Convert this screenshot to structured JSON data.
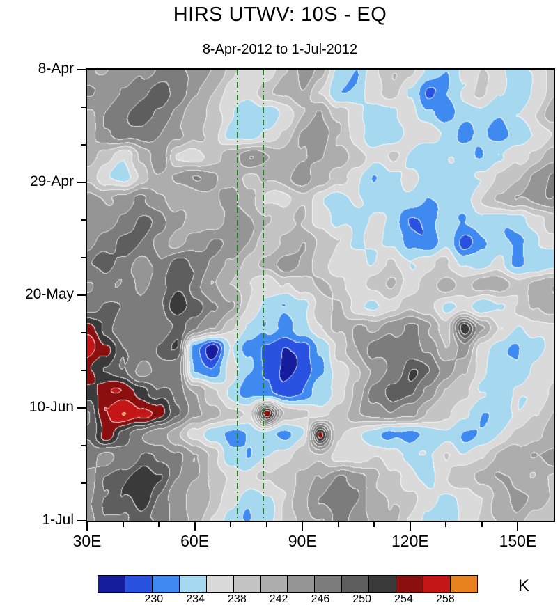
{
  "title": "HIRS UTWV: 10S - EQ",
  "subtitle": "8-Apr-2012 to 1-Jul-2012",
  "axes": {
    "y_ticks": [
      {
        "day": 0,
        "label": "8-Apr"
      },
      {
        "day": 21,
        "label": "29-Apr"
      },
      {
        "day": 42,
        "label": "20-May"
      },
      {
        "day": 63,
        "label": "10-Jun"
      },
      {
        "day": 84,
        "label": "1-Jul"
      }
    ],
    "y_minor_days": [
      7,
      14,
      28,
      35,
      49,
      56,
      70,
      77
    ],
    "x_ticks": [
      {
        "lon": 30,
        "label": "30E"
      },
      {
        "lon": 60,
        "label": "60E"
      },
      {
        "lon": 90,
        "label": "90E"
      },
      {
        "lon": 120,
        "label": "120E"
      },
      {
        "lon": 150,
        "label": "150E"
      }
    ],
    "x_minor_lons": [
      40,
      50,
      70,
      80,
      100,
      110,
      130,
      140
    ]
  },
  "colorbar": {
    "unit": "K",
    "labels": [
      "230",
      "234",
      "238",
      "242",
      "246",
      "250",
      "254",
      "258"
    ]
  },
  "chart_data": {
    "type": "heatmap",
    "title": "HIRS UTWV: 10S - EQ",
    "subtitle": "8-Apr-2012 to 1-Jul-2012",
    "units": "K",
    "x_axis": {
      "name": "longitude",
      "min": 30,
      "max": 160,
      "tick_labels": [
        "30E",
        "60E",
        "90E",
        "120E",
        "150E"
      ]
    },
    "y_axis": {
      "name": "date, top to bottom",
      "start": "8-Apr-2012",
      "end": "1-Jul-2012",
      "tick_labels": [
        "8-Apr",
        "29-Apr",
        "20-May",
        "10-Jun",
        "1-Jul"
      ]
    },
    "levels": [
      230,
      233,
      236,
      239,
      241.5,
      244,
      246.5,
      249,
      251.5,
      253.5,
      255.5,
      257.5,
      259.5
    ],
    "palette": [
      "#151d9c",
      "#2a52e0",
      "#3f8af0",
      "#a6d8ef",
      "#dadada",
      "#c4c4c4",
      "#adadad",
      "#959595",
      "#7c7c7c",
      "#5e5e5e",
      "#3a3a3a",
      "#8c0f0f",
      "#c41616",
      "#e8821e"
    ],
    "reference_lines": {
      "longitudes": [
        72,
        79
      ],
      "color": "#1e7d1e",
      "style": "dash-dot"
    },
    "lons": [
      30,
      35,
      40,
      45,
      50,
      55,
      60,
      65,
      70,
      75,
      80,
      85,
      90,
      95,
      100,
      105,
      110,
      115,
      120,
      125,
      130,
      135,
      140,
      145,
      150,
      155,
      160
    ],
    "row_days": [
      0,
      4,
      8,
      12,
      16,
      20,
      24,
      28,
      32,
      36,
      40,
      44,
      48,
      52,
      56,
      60,
      64,
      68,
      72,
      76,
      80,
      84
    ],
    "values": [
      [
        247,
        245,
        247,
        249,
        250,
        251,
        249,
        246,
        243,
        241,
        241,
        244,
        247,
        244,
        238,
        236,
        241,
        244,
        241,
        238,
        237,
        240,
        243,
        240,
        236,
        240,
        243
      ],
      [
        249,
        247,
        249,
        251,
        252,
        250,
        247,
        244,
        242,
        241,
        243,
        245,
        246,
        242,
        237,
        236,
        240,
        242,
        238,
        233,
        236,
        239,
        242,
        239,
        237,
        241,
        244
      ],
      [
        247,
        249,
        251,
        252,
        250,
        248,
        246,
        243,
        239,
        236,
        237,
        241,
        245,
        247,
        243,
        239,
        237,
        239,
        240,
        236,
        233,
        236,
        239,
        237,
        239,
        242,
        245
      ],
      [
        245,
        248,
        250,
        251,
        249,
        247,
        244,
        241,
        238,
        238,
        240,
        243,
        246,
        248,
        245,
        241,
        238,
        237,
        239,
        241,
        238,
        235,
        237,
        233,
        236,
        239,
        242
      ],
      [
        246,
        243,
        241,
        245,
        248,
        241,
        239,
        243,
        246,
        248,
        246,
        244,
        246,
        248,
        246,
        243,
        240,
        242,
        239,
        237,
        239,
        237,
        235,
        238,
        241,
        243,
        245
      ],
      [
        244,
        240,
        238,
        242,
        246,
        248,
        250,
        247,
        244,
        242,
        244,
        246,
        248,
        245,
        242,
        239,
        237,
        239,
        241,
        238,
        236,
        238,
        240,
        242,
        244,
        246,
        248
      ],
      [
        247,
        245,
        248,
        250,
        248,
        246,
        244,
        246,
        248,
        245,
        242,
        240,
        242,
        239,
        237,
        240,
        238,
        236,
        238,
        236,
        238,
        240,
        242,
        244,
        246,
        247,
        249
      ],
      [
        246,
        248,
        250,
        252,
        250,
        247,
        245,
        247,
        249,
        247,
        244,
        242,
        244,
        241,
        238,
        237,
        239,
        237,
        233,
        235,
        238,
        236,
        238,
        237,
        239,
        241,
        243
      ],
      [
        248,
        250,
        252,
        250,
        248,
        246,
        248,
        250,
        248,
        246,
        243,
        245,
        247,
        244,
        240,
        238,
        240,
        238,
        235,
        232,
        237,
        232,
        236,
        238,
        236,
        238,
        240
      ],
      [
        250,
        252,
        250,
        248,
        250,
        252,
        250,
        248,
        246,
        244,
        246,
        248,
        246,
        243,
        240,
        242,
        239,
        241,
        238,
        240,
        242,
        239,
        237,
        239,
        235,
        237,
        239
      ],
      [
        249,
        251,
        250,
        248,
        250,
        252,
        250,
        247,
        244,
        241,
        239,
        241,
        244,
        246,
        243,
        240,
        242,
        244,
        241,
        243,
        245,
        242,
        244,
        246,
        243,
        245,
        247
      ],
      [
        251,
        253,
        251,
        249,
        252,
        255,
        253,
        249,
        245,
        241,
        238,
        236,
        239,
        242,
        244,
        241,
        239,
        242,
        244,
        241,
        238,
        240,
        237,
        239,
        241,
        243,
        245
      ],
      [
        256,
        253,
        250,
        252,
        251,
        252,
        249,
        246,
        242,
        239,
        236,
        234,
        237,
        241,
        245,
        248,
        246,
        248,
        250,
        247,
        244,
        256,
        246,
        241,
        238,
        240,
        242
      ],
      [
        259,
        257,
        252,
        250,
        252,
        253,
        235,
        229,
        239,
        235,
        231,
        229,
        232,
        236,
        242,
        246,
        249,
        251,
        252,
        249,
        245,
        247,
        240,
        238,
        236,
        238,
        240
      ],
      [
        256,
        253,
        250,
        248,
        250,
        251,
        237,
        233,
        240,
        237,
        233,
        230,
        231,
        234,
        239,
        243,
        247,
        250,
        253,
        251,
        248,
        245,
        241,
        238,
        236,
        239,
        241
      ],
      [
        254,
        256,
        257,
        255,
        252,
        250,
        246,
        242,
        239,
        236,
        234,
        231,
        233,
        237,
        241,
        245,
        249,
        252,
        251,
        248,
        245,
        242,
        239,
        237,
        239,
        241,
        243
      ],
      [
        252,
        258,
        259,
        258,
        255,
        251,
        248,
        245,
        243,
        241,
        256,
        245,
        243,
        241,
        243,
        245,
        247,
        249,
        247,
        244,
        241,
        238,
        236,
        238,
        240,
        242,
        244
      ],
      [
        253,
        256,
        252,
        249,
        247,
        245,
        240,
        236,
        234,
        236,
        238,
        236,
        239,
        256,
        242,
        240,
        238,
        236,
        234,
        236,
        238,
        235,
        237,
        239,
        241,
        243,
        245
      ],
      [
        250,
        248,
        251,
        253,
        251,
        249,
        246,
        242,
        238,
        236,
        238,
        240,
        242,
        244,
        242,
        240,
        242,
        240,
        238,
        240,
        242,
        239,
        241,
        243,
        245,
        247,
        248
      ],
      [
        249,
        252,
        254,
        255,
        253,
        250,
        247,
        244,
        241,
        239,
        241,
        243,
        245,
        247,
        249,
        247,
        245,
        243,
        241,
        239,
        241,
        243,
        245,
        247,
        246,
        244,
        242
      ],
      [
        248,
        251,
        253,
        255,
        252,
        249,
        246,
        243,
        240,
        237,
        239,
        242,
        245,
        248,
        251,
        249,
        246,
        244,
        242,
        240,
        238,
        241,
        243,
        245,
        247,
        245,
        243
      ],
      [
        247,
        250,
        252,
        253,
        251,
        248,
        245,
        242,
        239,
        236,
        238,
        241,
        244,
        247,
        250,
        248,
        245,
        243,
        241,
        239,
        237,
        240,
        242,
        244,
        246,
        244,
        242
      ]
    ]
  }
}
